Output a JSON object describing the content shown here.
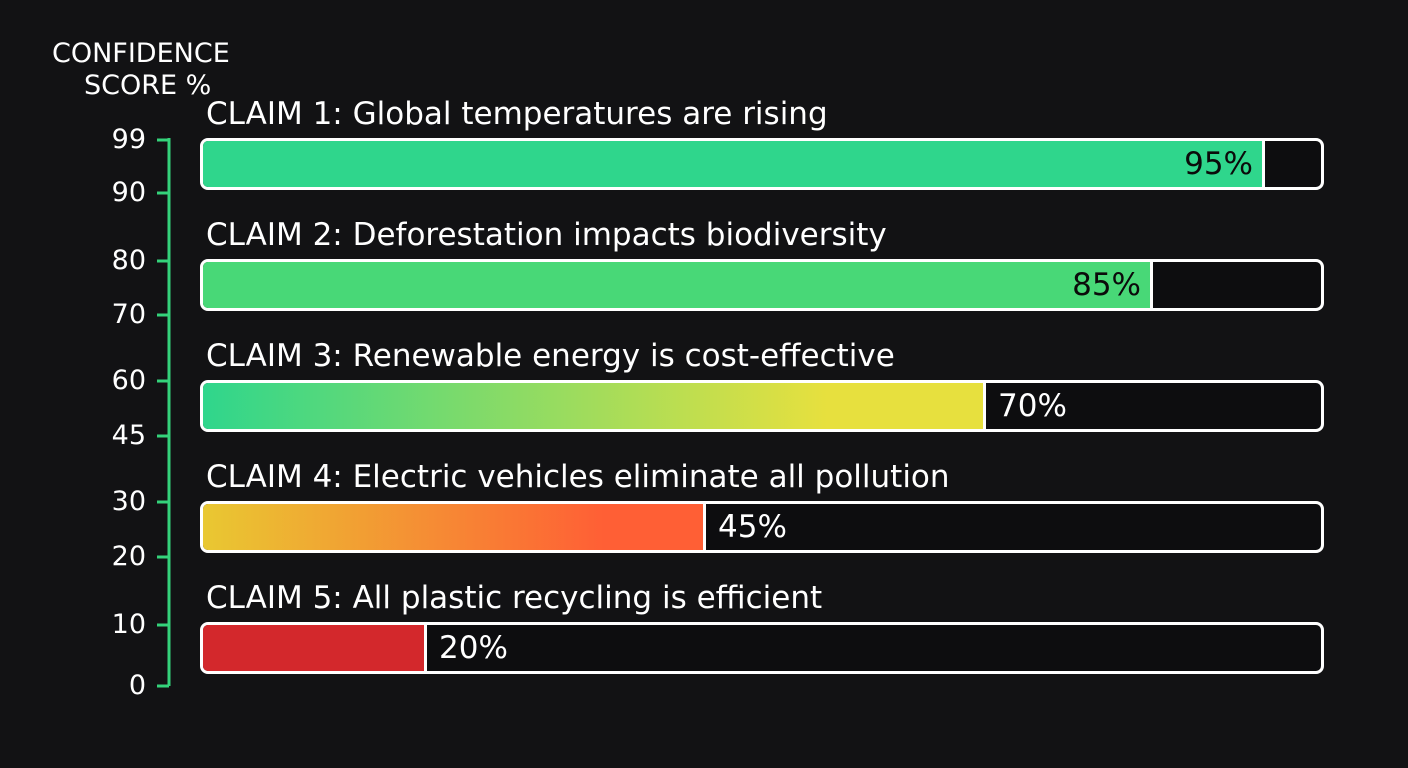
{
  "chart_data": {
    "type": "bar",
    "orientation": "horizontal",
    "ylabel_lines": [
      "CONFIDENCE",
      "SCORE %"
    ],
    "axis_ticks": [
      "99",
      "90",
      "80",
      "70",
      "60",
      "45",
      "30",
      "20",
      "10",
      "0"
    ],
    "xlim": [
      0,
      100
    ],
    "grid": false,
    "legend": "none",
    "categories": [
      "CLAIM 1: Global temperatures are rising",
      "CLAIM 2: Deforestation impacts biodiversity",
      "CLAIM 3: Renewable energy is cost-effective",
      "CLAIM 4: Electric vehicles eliminate all pollution",
      "CLAIM 5: All plastic recycling is efficient"
    ],
    "values": [
      95,
      85,
      70,
      45,
      20
    ],
    "value_labels": [
      "95%",
      "85%",
      "70%",
      "45%",
      "20%"
    ],
    "label_placement": [
      "inside",
      "inside",
      "outside",
      "outside",
      "outside"
    ],
    "fills": [
      [
        "#2fd68c",
        "#2fd68c"
      ],
      [
        "#48d877",
        "#48d877"
      ],
      [
        "#2fd68c",
        "#e7e03e"
      ],
      [
        "#e9c832",
        "#ff5f35"
      ],
      [
        "#d3282c",
        "#d3282c"
      ]
    ],
    "colors": {
      "background": "#121214",
      "axis_line": "#34d27a",
      "frame": "#ffffff",
      "text": "#ffffff",
      "inside_label": "#0b0b0b"
    }
  }
}
